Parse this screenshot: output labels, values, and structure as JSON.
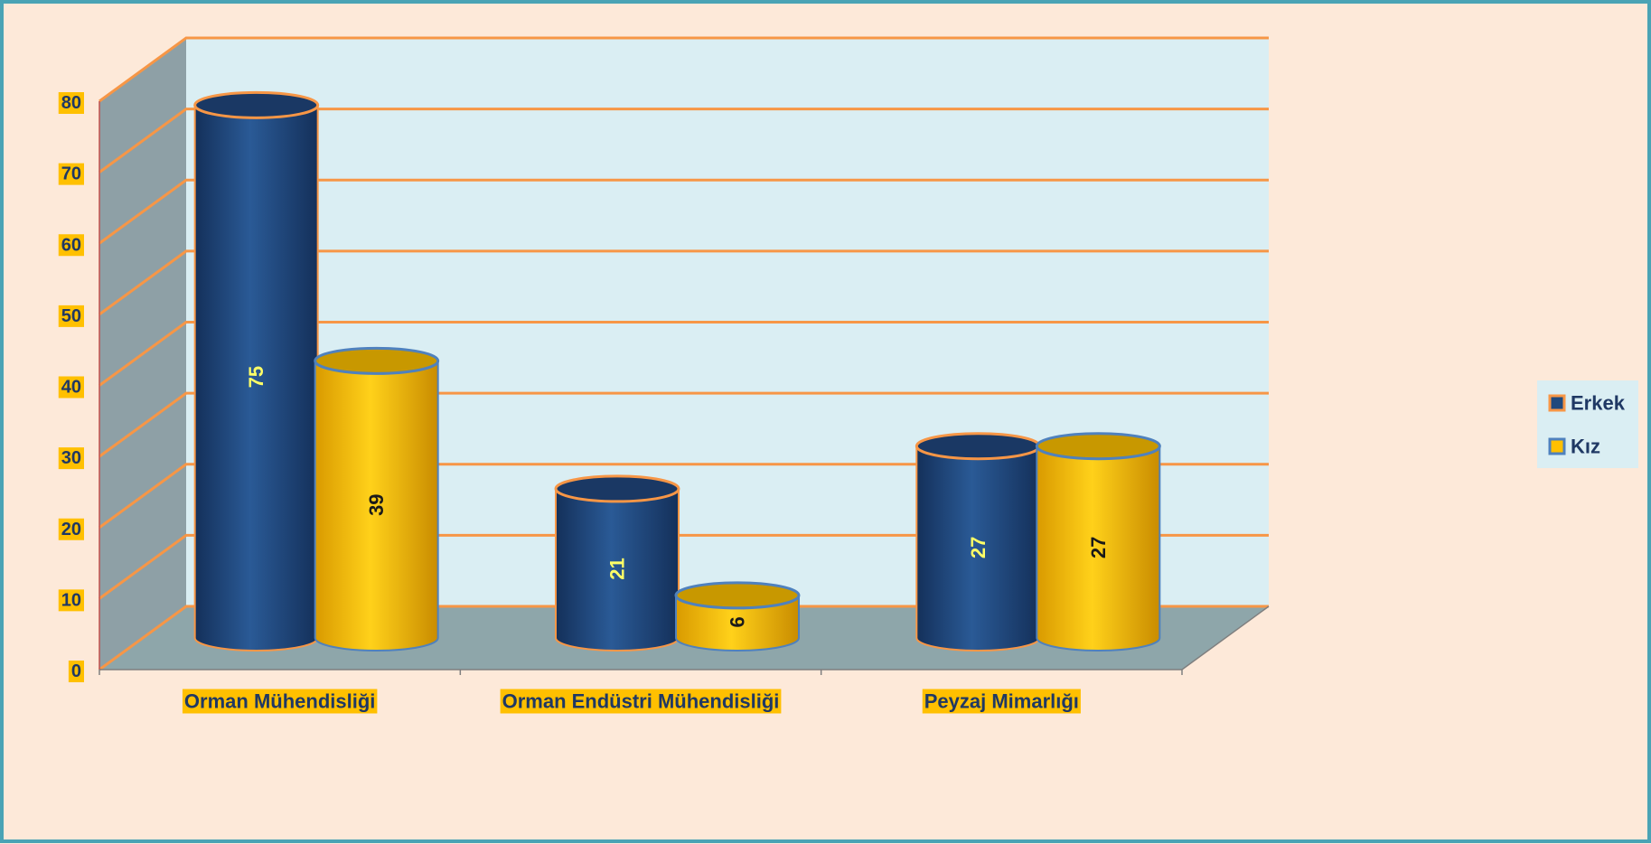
{
  "chart_data": {
    "type": "bar",
    "categories": [
      "Orman Mühendisliği",
      "Orman Endüstri Mühendisliği",
      "Peyzaj Mimarlığı"
    ],
    "series": [
      {
        "name": "Erkek",
        "values": [
          75,
          21,
          27
        ],
        "color": "#1f497d",
        "label_color": "#ffff66"
      },
      {
        "name": "Kız",
        "values": [
          39,
          6,
          27
        ],
        "color": "#ffc000",
        "label_color": "#1a1a1a"
      }
    ],
    "y_ticks": [
      "0",
      "10",
      "20",
      "30",
      "40",
      "50",
      "60",
      "70",
      "80"
    ],
    "ylim": [
      0,
      80
    ],
    "legend_position": "right",
    "grid": true,
    "style": "3d-cylinder",
    "colors": {
      "background": "#fde9d9",
      "frame_border": "#4aa3b5",
      "gridline": "#f79646",
      "back_wall": "#daeef3",
      "side_wall": "#8ea0a6",
      "floor": "#8ea6aa",
      "label_highlight": "#ffc000",
      "axis_text": "#1f3864"
    }
  }
}
